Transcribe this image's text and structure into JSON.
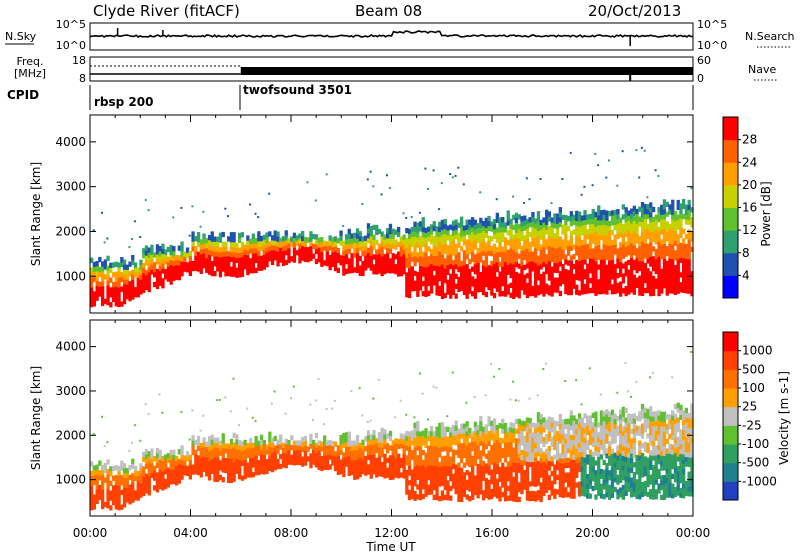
{
  "header": {
    "station": "Clyde River (fitACF)",
    "beam": "Beam 08",
    "date": "20/Oct/2013"
  },
  "chart_data": [
    {
      "type": "line",
      "panel": "noise",
      "left_label": "N.Sky",
      "right_label": "N.Search",
      "yticks_left": [
        "10^5",
        "10^0"
      ],
      "yticks_right": [
        "10^5",
        "10^0"
      ]
    },
    {
      "type": "line",
      "panel": "frequency",
      "left_label_line1": "Freq.",
      "left_label_line2": "[MHz]",
      "right_label": "Nave",
      "yticks_left": [
        "18",
        "8"
      ],
      "yticks_right": [
        "60",
        "0"
      ]
    },
    {
      "type": "table",
      "panel": "cpid",
      "label": "CPID",
      "segments": [
        {
          "name": "rbsp 200",
          "start_hour": 0
        },
        {
          "name": "twofsound 3501",
          "start_hour": 6
        }
      ]
    },
    {
      "type": "heatmap",
      "panel": "power",
      "ylabel": "Slant Range [km]",
      "ylim": [
        180,
        4600
      ],
      "yticks": [
        "1000",
        "2000",
        "3000",
        "4000"
      ],
      "xlim": [
        0,
        24
      ],
      "colorbar_label": "Power [dB]",
      "colorbar_ticks": [
        "28",
        "24",
        "20",
        "16",
        "12",
        "8",
        "4"
      ],
      "colors": [
        "#0000ff",
        "#2050b0",
        "#30a070",
        "#60c030",
        "#c8d000",
        "#ffa000",
        "#ff6000",
        "#ff0000"
      ]
    },
    {
      "type": "heatmap",
      "panel": "velocity",
      "ylabel": "Slant Range [km]",
      "ylim": [
        180,
        4600
      ],
      "yticks": [
        "1000",
        "2000",
        "3000",
        "4000"
      ],
      "xlim": [
        0,
        24
      ],
      "xticks": [
        "00:00",
        "04:00",
        "08:00",
        "12:00",
        "16:00",
        "20:00",
        "00:00"
      ],
      "xlabel": "Time UT",
      "colorbar_label": "Velocity [m s-1]",
      "colorbar_ticks": [
        "1000",
        "500",
        "100",
        "25",
        "-25",
        "-100",
        "-500",
        "-1000"
      ],
      "colors": [
        "#2040c0",
        "#208090",
        "#30a060",
        "#60c030",
        "#c0c0c0",
        "#ffa000",
        "#ff7000",
        "#ff4000",
        "#ff0000"
      ]
    }
  ]
}
